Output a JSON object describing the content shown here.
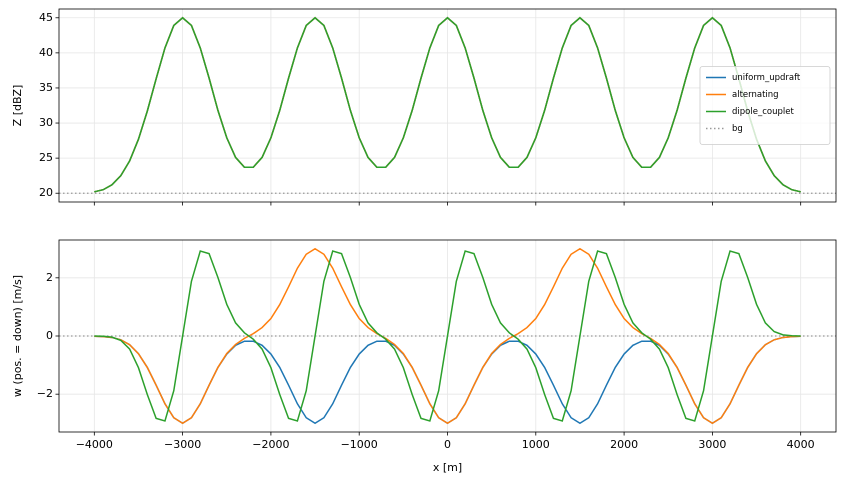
{
  "chart_data": [
    {
      "type": "line",
      "ylabel": "Z [dBZ]",
      "x": [
        -4000,
        -3900,
        -3800,
        -3700,
        -3600,
        -3500,
        -3400,
        -3300,
        -3200,
        -3100,
        -3000,
        -2900,
        -2800,
        -2700,
        -2600,
        -2500,
        -2400,
        -2300,
        -2200,
        -2100,
        -2000,
        -1900,
        -1800,
        -1700,
        -1600,
        -1500,
        -1400,
        -1300,
        -1200,
        -1100,
        -1000,
        -900,
        -800,
        -700,
        -600,
        -500,
        -400,
        -300,
        -200,
        -100,
        0,
        100,
        200,
        300,
        400,
        500,
        600,
        700,
        800,
        900,
        1000,
        1100,
        1200,
        1300,
        1400,
        1500,
        1600,
        1700,
        1800,
        1900,
        2000,
        2100,
        2200,
        2300,
        2400,
        2500,
        2600,
        2700,
        2800,
        2900,
        3000,
        3100,
        3200,
        3300,
        3400,
        3500,
        3600,
        3700,
        3800,
        3900,
        4000
      ],
      "series": [
        {
          "name": "uniform_updraft",
          "color": "#1f77b4",
          "values": [
            20.2,
            20.5,
            21.2,
            22.5,
            24.6,
            27.7,
            31.7,
            36.3,
            40.7,
            43.9,
            45,
            43.9,
            40.7,
            36.4,
            31.8,
            27.9,
            25.1,
            23.7,
            23.7,
            25.1,
            27.9,
            31.8,
            36.4,
            40.7,
            43.9,
            45,
            43.9,
            40.7,
            36.4,
            31.8,
            27.9,
            25.1,
            23.7,
            23.7,
            25.1,
            27.9,
            31.8,
            36.4,
            40.7,
            43.9,
            45,
            43.9,
            40.7,
            36.4,
            31.8,
            27.9,
            25.1,
            23.7,
            23.7,
            25.1,
            27.9,
            31.8,
            36.4,
            40.7,
            43.9,
            45,
            43.9,
            40.7,
            36.4,
            31.8,
            27.9,
            25.1,
            23.7,
            23.7,
            25.1,
            27.9,
            31.8,
            36.4,
            40.7,
            43.9,
            45,
            43.9,
            40.7,
            36.3,
            31.7,
            27.7,
            24.6,
            22.5,
            21.2,
            20.5,
            20.2
          ]
        },
        {
          "name": "alternating",
          "color": "#ff7f0e",
          "values": [
            20.2,
            20.5,
            21.2,
            22.5,
            24.6,
            27.7,
            31.7,
            36.3,
            40.7,
            43.9,
            45,
            43.9,
            40.7,
            36.4,
            31.8,
            27.9,
            25.1,
            23.7,
            23.7,
            25.1,
            27.9,
            31.8,
            36.4,
            40.7,
            43.9,
            45,
            43.9,
            40.7,
            36.4,
            31.8,
            27.9,
            25.1,
            23.7,
            23.7,
            25.1,
            27.9,
            31.8,
            36.4,
            40.7,
            43.9,
            45,
            43.9,
            40.7,
            36.4,
            31.8,
            27.9,
            25.1,
            23.7,
            23.7,
            25.1,
            27.9,
            31.8,
            36.4,
            40.7,
            43.9,
            45,
            43.9,
            40.7,
            36.4,
            31.8,
            27.9,
            25.1,
            23.7,
            23.7,
            25.1,
            27.9,
            31.8,
            36.4,
            40.7,
            43.9,
            45,
            43.9,
            40.7,
            36.3,
            31.7,
            27.7,
            24.6,
            22.5,
            21.2,
            20.5,
            20.2
          ]
        },
        {
          "name": "dipole_couplet",
          "color": "#2ca02c",
          "values": [
            20.2,
            20.5,
            21.2,
            22.5,
            24.6,
            27.7,
            31.7,
            36.3,
            40.7,
            43.9,
            45,
            43.9,
            40.7,
            36.4,
            31.8,
            27.9,
            25.1,
            23.7,
            23.7,
            25.1,
            27.9,
            31.8,
            36.4,
            40.7,
            43.9,
            45,
            43.9,
            40.7,
            36.4,
            31.8,
            27.9,
            25.1,
            23.7,
            23.7,
            25.1,
            27.9,
            31.8,
            36.4,
            40.7,
            43.9,
            45,
            43.9,
            40.7,
            36.4,
            31.8,
            27.9,
            25.1,
            23.7,
            23.7,
            25.1,
            27.9,
            31.8,
            36.4,
            40.7,
            43.9,
            45,
            43.9,
            40.7,
            36.4,
            31.8,
            27.9,
            25.1,
            23.7,
            23.7,
            25.1,
            27.9,
            31.8,
            36.4,
            40.7,
            43.9,
            45,
            43.9,
            40.7,
            36.3,
            31.7,
            27.7,
            24.6,
            22.5,
            21.2,
            20.5,
            20.2
          ]
        }
      ],
      "hline": {
        "name": "bg",
        "value": 20,
        "color": "#999999",
        "style": "dotted"
      },
      "xlim": [
        -4400,
        4400
      ],
      "ylim": [
        18.75,
        46.25
      ],
      "yticks": [
        20,
        25,
        30,
        35,
        40,
        45
      ],
      "grid": true,
      "legend": "center right"
    },
    {
      "type": "line",
      "xlabel": "x [m]",
      "ylabel": "w (pos. = down) [m/s]",
      "x": [
        -4000,
        -3900,
        -3800,
        -3700,
        -3600,
        -3500,
        -3400,
        -3300,
        -3200,
        -3100,
        -3000,
        -2900,
        -2800,
        -2700,
        -2600,
        -2500,
        -2400,
        -2300,
        -2200,
        -2100,
        -2000,
        -1900,
        -1800,
        -1700,
        -1600,
        -1500,
        -1400,
        -1300,
        -1200,
        -1100,
        -1000,
        -900,
        -800,
        -700,
        -600,
        -500,
        -400,
        -300,
        -200,
        -100,
        0,
        100,
        200,
        300,
        400,
        500,
        600,
        700,
        800,
        900,
        1000,
        1100,
        1200,
        1300,
        1400,
        1500,
        1600,
        1700,
        1800,
        1900,
        2000,
        2100,
        2200,
        2300,
        2400,
        2500,
        2600,
        2700,
        2800,
        2900,
        3000,
        3100,
        3200,
        3300,
        3400,
        3500,
        3600,
        3700,
        3800,
        3900,
        4000
      ],
      "series": [
        {
          "name": "uniform_updraft",
          "color": "#1f77b4",
          "values": [
            -0.01,
            -0.02,
            -0.05,
            -0.13,
            -0.3,
            -0.61,
            -1.08,
            -1.69,
            -2.33,
            -2.81,
            -3,
            -2.81,
            -2.33,
            -1.69,
            -1.08,
            -0.62,
            -0.32,
            -0.18,
            -0.18,
            -0.32,
            -0.62,
            -1.08,
            -1.69,
            -2.33,
            -2.81,
            -3,
            -2.81,
            -2.33,
            -1.69,
            -1.08,
            -0.62,
            -0.32,
            -0.18,
            -0.18,
            -0.32,
            -0.62,
            -1.08,
            -1.69,
            -2.33,
            -2.81,
            -3,
            -2.81,
            -2.33,
            -1.69,
            -1.08,
            -0.62,
            -0.32,
            -0.18,
            -0.18,
            -0.32,
            -0.62,
            -1.08,
            -1.69,
            -2.33,
            -2.81,
            -3,
            -2.81,
            -2.33,
            -1.69,
            -1.08,
            -0.62,
            -0.32,
            -0.18,
            -0.18,
            -0.32,
            -0.62,
            -1.08,
            -1.69,
            -2.33,
            -2.81,
            -3,
            -2.81,
            -2.33,
            -1.69,
            -1.08,
            -0.61,
            -0.3,
            -0.13,
            -0.05,
            -0.02,
            -0.01
          ]
        },
        {
          "name": "alternating",
          "color": "#ff7f0e",
          "values": [
            -0.01,
            -0.02,
            -0.05,
            -0.13,
            -0.3,
            -0.61,
            -1.08,
            -1.69,
            -2.33,
            -2.81,
            -3,
            -2.81,
            -2.33,
            -1.69,
            -1.08,
            -0.6,
            -0.29,
            -0.08,
            0.08,
            0.29,
            0.6,
            1.08,
            1.69,
            2.33,
            2.81,
            3,
            2.81,
            2.33,
            1.69,
            1.08,
            0.6,
            0.29,
            0.08,
            -0.08,
            -0.29,
            -0.6,
            -1.08,
            -1.69,
            -2.33,
            -2.81,
            -3,
            -2.81,
            -2.33,
            -1.69,
            -1.08,
            -0.6,
            -0.29,
            -0.08,
            0.08,
            0.29,
            0.6,
            1.08,
            1.69,
            2.33,
            2.81,
            3,
            2.81,
            2.33,
            1.69,
            1.08,
            0.6,
            0.29,
            0.08,
            -0.08,
            -0.29,
            -0.6,
            -1.08,
            -1.69,
            -2.33,
            -2.81,
            -3,
            -2.81,
            -2.33,
            -1.69,
            -1.08,
            -0.61,
            -0.3,
            -0.13,
            -0.05,
            -0.02,
            -0.01
          ]
        },
        {
          "name": "dipole_couplet",
          "color": "#2ca02c",
          "values": [
            0,
            -0.01,
            -0.04,
            -0.15,
            -0.45,
            -1.09,
            -2.01,
            -2.83,
            -2.92,
            -1.88,
            0,
            1.88,
            2.92,
            2.83,
            2.01,
            1.09,
            0.45,
            0.11,
            -0.11,
            -0.45,
            -1.09,
            -2.01,
            -2.83,
            -2.92,
            -1.88,
            0,
            1.88,
            2.92,
            2.83,
            2.01,
            1.09,
            0.45,
            0.11,
            -0.11,
            -0.45,
            -1.09,
            -2.01,
            -2.83,
            -2.92,
            -1.88,
            0,
            1.88,
            2.92,
            2.83,
            2.01,
            1.09,
            0.45,
            0.11,
            -0.11,
            -0.45,
            -1.09,
            -2.01,
            -2.83,
            -2.92,
            -1.88,
            0,
            1.88,
            2.92,
            2.83,
            2.01,
            1.09,
            0.45,
            0.11,
            -0.11,
            -0.45,
            -1.09,
            -2.01,
            -2.83,
            -2.92,
            -1.88,
            0,
            1.88,
            2.92,
            2.83,
            2.01,
            1.09,
            0.45,
            0.15,
            0.04,
            0.01,
            0
          ]
        }
      ],
      "hline": {
        "value": 0,
        "color": "#999999",
        "style": "dotted"
      },
      "xlim": [
        -4400,
        4400
      ],
      "ylim": [
        -3.3,
        3.3
      ],
      "xticks": [
        {
          "value": -4000,
          "label": "−4000"
        },
        {
          "value": -3000,
          "label": "−3000"
        },
        {
          "value": -2000,
          "label": "−2000"
        },
        {
          "value": -1000,
          "label": "−1000"
        },
        0,
        1000,
        2000,
        3000,
        4000
      ],
      "yticks": [
        {
          "value": -2,
          "label": "−2"
        },
        0,
        2
      ],
      "grid": true
    }
  ]
}
